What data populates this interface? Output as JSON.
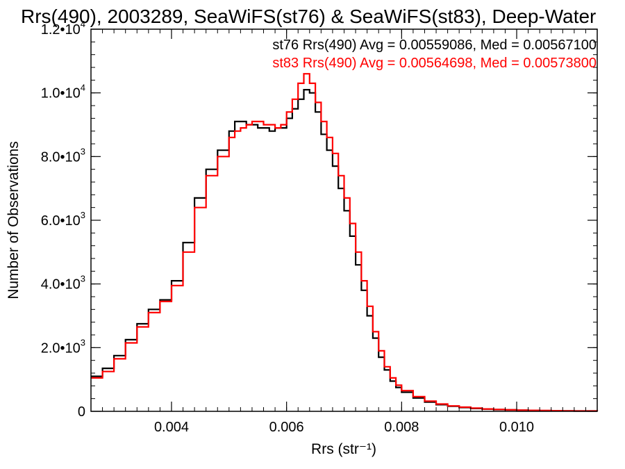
{
  "chart_data": {
    "type": "line",
    "step": true,
    "title": "Rrs(490), 2003289, SeaWiFS(st76) & SeaWiFS(st83), Deep-Water",
    "xlabel": "Rrs (str⁻¹)",
    "ylabel": "Number of Observations",
    "xlim": [
      0.0026,
      0.0114
    ],
    "ylim": [
      0,
      12000
    ],
    "x_ticks": [
      0.004,
      0.006,
      0.008,
      0.01
    ],
    "x_tick_labels": [
      "0.004",
      "0.006",
      "0.008",
      "0.010"
    ],
    "y_ticks": [
      0,
      2000,
      4000,
      6000,
      8000,
      10000,
      12000
    ],
    "y_tick_labels": [
      {
        "mantissa": "0",
        "exp": ""
      },
      {
        "mantissa": "2.0•10",
        "exp": "3"
      },
      {
        "mantissa": "4.0•10",
        "exp": "3"
      },
      {
        "mantissa": "6.0•10",
        "exp": "3"
      },
      {
        "mantissa": "8.0•10",
        "exp": "3"
      },
      {
        "mantissa": "1.0•10",
        "exp": "4"
      },
      {
        "mantissa": "1.2•10",
        "exp": "4"
      }
    ],
    "annotations": [
      {
        "text": "st76 Rrs(490) Avg = 0.00559086, Med = 0.00567100",
        "color": "#000000"
      },
      {
        "text": "st83 Rrs(490) Avg = 0.00564698, Med = 0.00573800",
        "color": "#ff0000"
      }
    ],
    "series": [
      {
        "color": "#000000",
        "x": [
          0.0026,
          0.0028,
          0.003,
          0.0032,
          0.0034,
          0.0036,
          0.0038,
          0.004,
          0.0042,
          0.0044,
          0.0046,
          0.0048,
          0.005,
          0.0051,
          0.0052,
          0.0053,
          0.0054,
          0.0055,
          0.0056,
          0.0057,
          0.0058,
          0.0059,
          0.006,
          0.0061,
          0.0062,
          0.0063,
          0.0064,
          0.0065,
          0.0066,
          0.0067,
          0.0068,
          0.0069,
          0.007,
          0.0071,
          0.0072,
          0.0073,
          0.0074,
          0.0075,
          0.0076,
          0.0077,
          0.0078,
          0.0079,
          0.008,
          0.0082,
          0.0084,
          0.0086,
          0.0088,
          0.009,
          0.0092,
          0.0094,
          0.0096,
          0.0098,
          0.01,
          0.0102,
          0.0104,
          0.0106,
          0.0108,
          0.011,
          0.0112,
          0.0114
        ],
        "values": [
          1100,
          1350,
          1750,
          2250,
          2750,
          3200,
          3500,
          4100,
          5300,
          6700,
          7600,
          8200,
          8800,
          9100,
          9100,
          9000,
          9000,
          8900,
          8900,
          8800,
          8900,
          8900,
          9200,
          9500,
          9800,
          10100,
          10000,
          9400,
          8700,
          8200,
          7700,
          7000,
          6300,
          5500,
          4600,
          3800,
          3000,
          2300,
          1700,
          1300,
          950,
          750,
          600,
          420,
          290,
          210,
          160,
          120,
          90,
          70,
          55,
          45,
          35,
          28,
          22,
          18,
          15,
          12,
          10,
          8
        ]
      },
      {
        "color": "#ff0000",
        "x": [
          0.0026,
          0.0028,
          0.003,
          0.0032,
          0.0034,
          0.0036,
          0.0038,
          0.004,
          0.0042,
          0.0044,
          0.0046,
          0.0048,
          0.005,
          0.0051,
          0.0052,
          0.0053,
          0.0054,
          0.0055,
          0.0056,
          0.0057,
          0.0058,
          0.0059,
          0.006,
          0.0061,
          0.0062,
          0.0063,
          0.0064,
          0.0065,
          0.0066,
          0.0067,
          0.0068,
          0.0069,
          0.007,
          0.0071,
          0.0072,
          0.0073,
          0.0074,
          0.0075,
          0.0076,
          0.0077,
          0.0078,
          0.0079,
          0.008,
          0.0082,
          0.0084,
          0.0086,
          0.0088,
          0.009,
          0.0092,
          0.0094,
          0.0096,
          0.0098,
          0.01,
          0.0102,
          0.0104,
          0.0106,
          0.0108,
          0.011,
          0.0112,
          0.0114
        ],
        "values": [
          1050,
          1250,
          1650,
          2150,
          2650,
          3100,
          3450,
          3950,
          5000,
          6400,
          7400,
          8000,
          8600,
          8800,
          8900,
          9000,
          9100,
          9100,
          9000,
          9000,
          8900,
          9000,
          9400,
          9800,
          10300,
          10600,
          10300,
          9700,
          9100,
          8600,
          8100,
          7400,
          6700,
          5900,
          5000,
          4100,
          3300,
          2500,
          1900,
          1400,
          1050,
          820,
          650,
          460,
          320,
          230,
          170,
          130,
          100,
          75,
          60,
          48,
          38,
          30,
          24,
          19,
          15,
          12,
          10,
          8
        ]
      }
    ]
  }
}
